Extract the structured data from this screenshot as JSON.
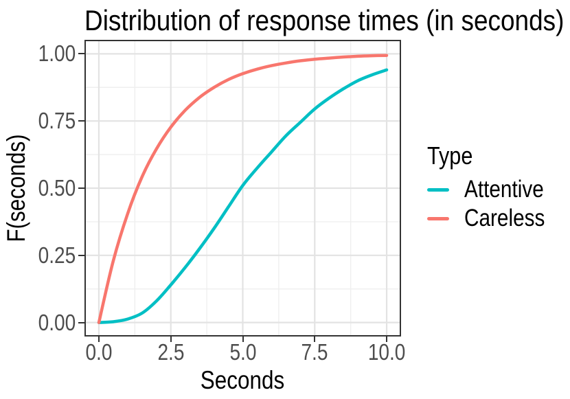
{
  "title": "Distribution of response times (in seconds)",
  "axis": {
    "x_label": "Seconds",
    "y_label": "F(seconds)"
  },
  "legend": {
    "title": "Type"
  },
  "chart_data": {
    "type": "line",
    "title": "Distribution of response times (in seconds)",
    "subtitle": "",
    "xlabel": "Seconds",
    "ylabel": "F(seconds)",
    "x": [
      0,
      0.5,
      1,
      1.5,
      2,
      2.5,
      3,
      3.5,
      4,
      4.5,
      5,
      5.5,
      6,
      6.5,
      7,
      7.5,
      8,
      8.5,
      9,
      9.5,
      10
    ],
    "series": [
      {
        "name": "Attentive",
        "color": "#00BFC4",
        "values": [
          0,
          0.003,
          0.013,
          0.035,
          0.08,
          0.14,
          0.205,
          0.275,
          0.35,
          0.43,
          0.51,
          0.575,
          0.635,
          0.695,
          0.745,
          0.795,
          0.835,
          0.87,
          0.9,
          0.922,
          0.94
        ]
      },
      {
        "name": "Careless",
        "color": "#F8766D",
        "values": [
          0,
          0.229,
          0.405,
          0.542,
          0.646,
          0.727,
          0.79,
          0.838,
          0.875,
          0.904,
          0.926,
          0.943,
          0.956,
          0.966,
          0.974,
          0.98,
          0.984,
          0.988,
          0.991,
          0.993,
          0.994
        ]
      }
    ],
    "x_ticks": [
      0,
      2.5,
      5,
      7.5,
      10
    ],
    "x_tick_labels": [
      "0.0",
      "2.5",
      "5.0",
      "7.5",
      "10.0"
    ],
    "x_minor_ticks": [
      1.25,
      3.75,
      6.25,
      8.75
    ],
    "y_ticks": [
      0,
      0.25,
      0.5,
      0.75,
      1
    ],
    "y_tick_labels": [
      "0.00",
      "0.25",
      "0.50",
      "0.75",
      "1.00"
    ],
    "y_minor_ticks": [
      0.125,
      0.375,
      0.625,
      0.875
    ],
    "xlim": [
      0,
      10
    ],
    "ylim": [
      0,
      1
    ],
    "x_range": [
      -0.5,
      10.5
    ],
    "y_range": [
      -0.052,
      1.052
    ],
    "grid": true,
    "legend_position": "right",
    "legend_title": "Type"
  },
  "colors": {
    "attentive": "#00BFC4",
    "careless": "#F8766D",
    "grid_major": "#E3E3E3",
    "grid_minor": "#EFEFEF",
    "panel_border": "#333333",
    "tick_mark": "#333333",
    "tick_text": "#4D4D4D",
    "background": "#FFFFFF",
    "text": "#000000"
  }
}
